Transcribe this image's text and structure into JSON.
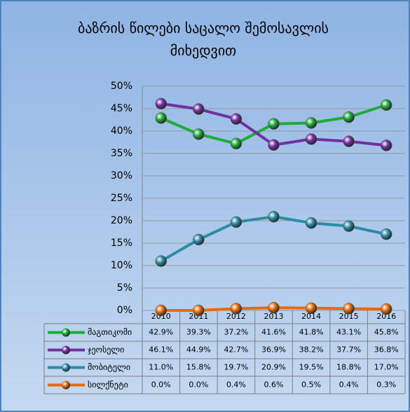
{
  "chart_data": {
    "type": "line",
    "title": "ბაზრის წილები საცალო შემოსავლის მიხედვით",
    "categories": [
      "2010",
      "2011",
      "2012",
      "2013",
      "2014",
      "2015",
      "2016"
    ],
    "series": [
      {
        "name": "მაგთიკომი",
        "color": "#1faa3c",
        "values": [
          42.9,
          39.3,
          37.2,
          41.6,
          41.8,
          43.1,
          45.8
        ],
        "value_labels": [
          "42.9%",
          "39.3%",
          "37.2%",
          "41.6%",
          "41.8%",
          "43.1%",
          "45.8%"
        ]
      },
      {
        "name": "ჯეოსელი",
        "color": "#7030a0",
        "values": [
          46.1,
          44.9,
          42.7,
          36.9,
          38.2,
          37.7,
          36.8
        ],
        "value_labels": [
          "46.1%",
          "44.9%",
          "42.7%",
          "36.9%",
          "38.2%",
          "37.7%",
          "36.8%"
        ]
      },
      {
        "name": "მობიტელი",
        "color": "#2e8ba5",
        "values": [
          11.0,
          15.8,
          19.7,
          20.9,
          19.5,
          18.8,
          17.0
        ],
        "value_labels": [
          "11.0%",
          "15.8%",
          "19.7%",
          "20.9%",
          "19.5%",
          "18.8%",
          "17.0%"
        ]
      },
      {
        "name": "სილქნეტი",
        "color": "#e46c0a",
        "values": [
          0.0,
          0.0,
          0.4,
          0.6,
          0.5,
          0.4,
          0.3
        ],
        "value_labels": [
          "0.0%",
          "0.0%",
          "0.4%",
          "0.6%",
          "0.5%",
          "0.4%",
          "0.3%"
        ]
      }
    ],
    "ylim": [
      0,
      50
    ],
    "yticks": [
      {
        "value": 0,
        "label": "0%"
      },
      {
        "value": 5,
        "label": "5%"
      },
      {
        "value": 10,
        "label": "10%"
      },
      {
        "value": 15,
        "label": "15%"
      },
      {
        "value": 20,
        "label": "20%"
      },
      {
        "value": 25,
        "label": "25%"
      },
      {
        "value": 30,
        "label": "30%"
      },
      {
        "value": 35,
        "label": "35%"
      },
      {
        "value": 40,
        "label": "40%"
      },
      {
        "value": 45,
        "label": "45%"
      },
      {
        "value": 50,
        "label": "50%"
      }
    ],
    "grid": true
  }
}
